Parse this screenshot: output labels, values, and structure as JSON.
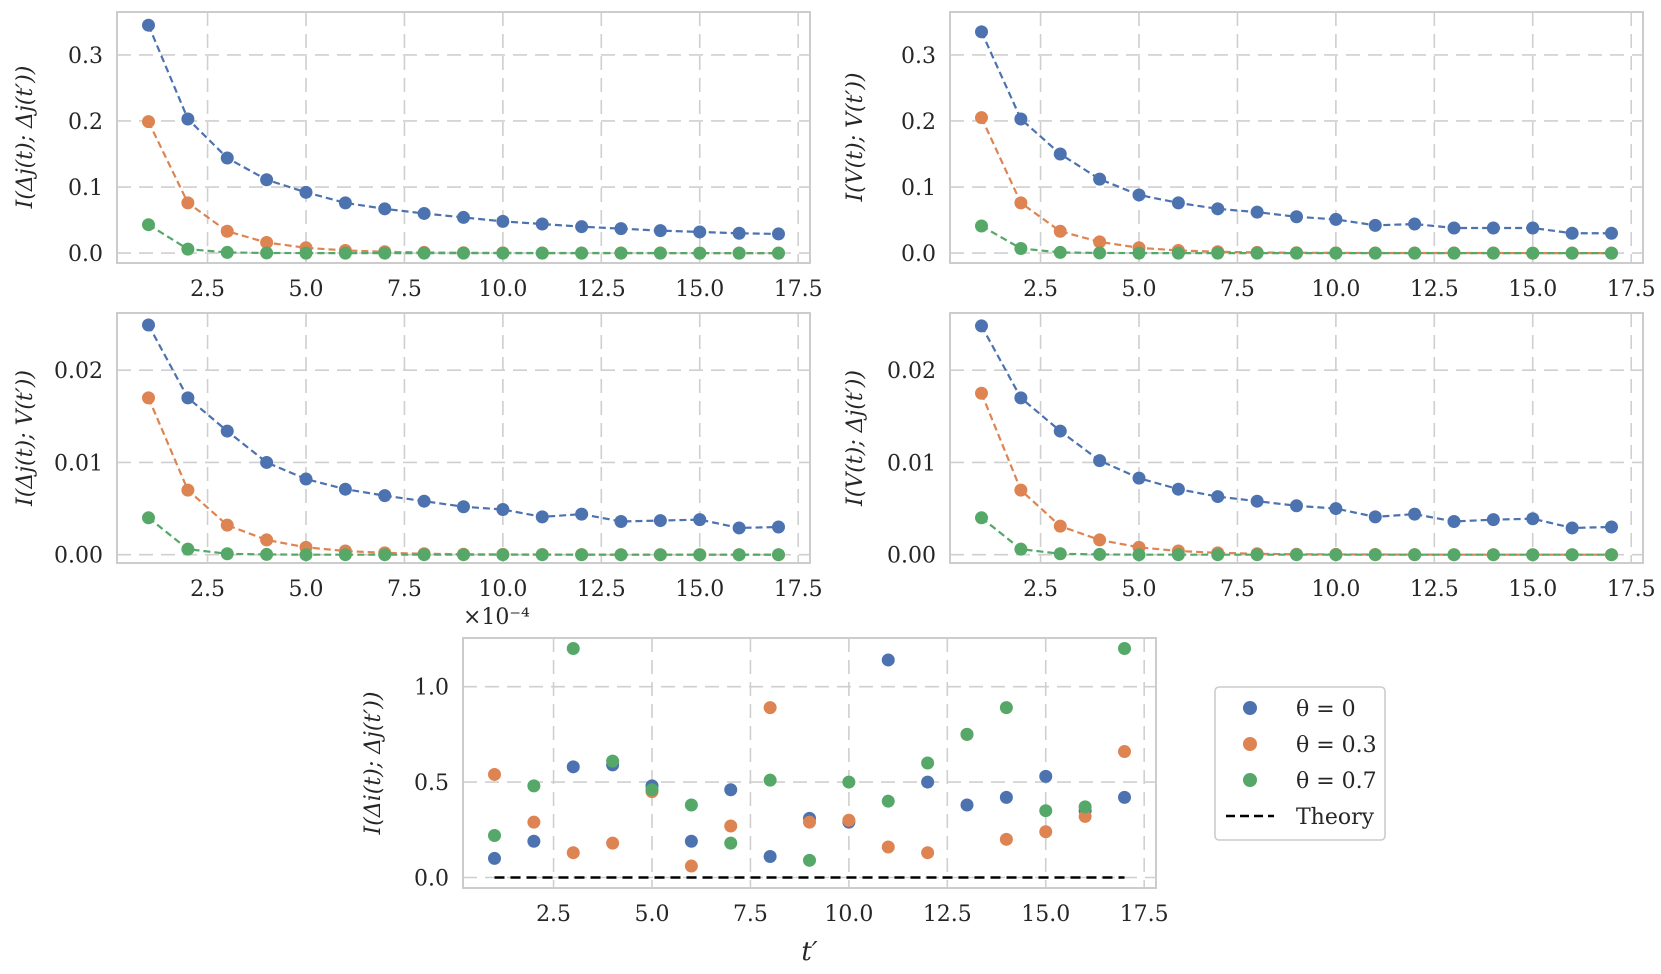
{
  "colors": {
    "theta0": "#4c72b0",
    "theta03": "#dd8452",
    "theta07": "#55a868",
    "theory": "#000000"
  },
  "legend": {
    "entries": [
      {
        "label": "θ = 0",
        "color": "#4c72b0",
        "kind": "marker"
      },
      {
        "label": "θ = 0.3",
        "color": "#dd8452",
        "kind": "marker"
      },
      {
        "label": "θ = 0.7",
        "color": "#55a868",
        "kind": "marker"
      },
      {
        "label": "Theory",
        "color": "#000000",
        "kind": "dashed-line"
      }
    ]
  },
  "chart_data": [
    {
      "type": "line",
      "ylabel": "I(Δj(t); Δj(t′))",
      "xlabel": "",
      "xlim": [
        0.2,
        17.8
      ],
      "ylim": [
        -0.015,
        0.365
      ],
      "xticks": [
        2.5,
        5.0,
        7.5,
        10.0,
        12.5,
        15.0,
        17.5
      ],
      "xtick_labels": [
        "2.5",
        "5.0",
        "7.5",
        "10.0",
        "12.5",
        "15.0",
        "17.5"
      ],
      "yticks": [
        0.0,
        0.1,
        0.2,
        0.3
      ],
      "ytick_labels": [
        "0.0",
        "0.1",
        "0.2",
        "0.3"
      ],
      "x": [
        1,
        2,
        3,
        4,
        5,
        6,
        7,
        8,
        9,
        10,
        11,
        12,
        13,
        14,
        15,
        16,
        17
      ],
      "series": [
        {
          "name": "θ = 0",
          "values": [
            0.345,
            0.203,
            0.144,
            0.111,
            0.092,
            0.076,
            0.067,
            0.06,
            0.054,
            0.048,
            0.044,
            0.04,
            0.037,
            0.034,
            0.032,
            0.03,
            0.029
          ]
        },
        {
          "name": "θ = 0.3",
          "values": [
            0.199,
            0.076,
            0.033,
            0.016,
            0.008,
            0.004,
            0.002,
            0.001,
            0.0005,
            0.0003,
            0.0002,
            0.0001,
            0.0001,
            0.0001,
            0.0,
            0.0,
            0.0
          ]
        },
        {
          "name": "θ = 0.7",
          "values": [
            0.043,
            0.006,
            0.001,
            0.0002,
            0.0,
            0.0,
            0.0,
            0.0,
            0.0,
            0.0,
            0.0,
            0.0,
            0.0,
            0.0,
            0.0,
            0.0,
            0.0
          ]
        }
      ]
    },
    {
      "type": "line",
      "ylabel": "I(V(t); V(t′))",
      "xlabel": "",
      "xlim": [
        0.2,
        17.8
      ],
      "ylim": [
        -0.015,
        0.365
      ],
      "xticks": [
        2.5,
        5.0,
        7.5,
        10.0,
        12.5,
        15.0,
        17.5
      ],
      "xtick_labels": [
        "2.5",
        "5.0",
        "7.5",
        "10.0",
        "12.5",
        "15.0",
        "17.5"
      ],
      "yticks": [
        0.0,
        0.1,
        0.2,
        0.3
      ],
      "ytick_labels": [
        "0.0",
        "0.1",
        "0.2",
        "0.3"
      ],
      "x": [
        1,
        2,
        3,
        4,
        5,
        6,
        7,
        8,
        9,
        10,
        11,
        12,
        13,
        14,
        15,
        16,
        17
      ],
      "series": [
        {
          "name": "θ = 0",
          "values": [
            0.335,
            0.203,
            0.15,
            0.112,
            0.088,
            0.076,
            0.067,
            0.062,
            0.055,
            0.051,
            0.042,
            0.044,
            0.038,
            0.038,
            0.038,
            0.03,
            0.03
          ]
        },
        {
          "name": "θ = 0.3",
          "values": [
            0.205,
            0.076,
            0.033,
            0.017,
            0.008,
            0.004,
            0.002,
            0.001,
            0.0005,
            0.0003,
            0.0002,
            0.0001,
            0.0001,
            0.0001,
            0.0,
            0.0,
            0.0
          ]
        },
        {
          "name": "θ = 0.7",
          "values": [
            0.041,
            0.007,
            0.001,
            0.0002,
            0.0,
            0.0,
            0.0,
            0.0,
            0.0,
            0.0,
            0.0,
            0.0,
            0.0,
            0.0,
            0.0,
            0.0,
            0.0
          ]
        }
      ]
    },
    {
      "type": "line",
      "ylabel": "I(Δj(t); V(t′))",
      "xlabel": "",
      "xlim": [
        0.2,
        17.8
      ],
      "ylim": [
        -0.0009,
        0.0262
      ],
      "xticks": [
        2.5,
        5.0,
        7.5,
        10.0,
        12.5,
        15.0,
        17.5
      ],
      "xtick_labels": [
        "2.5",
        "5.0",
        "7.5",
        "10.0",
        "12.5",
        "15.0",
        "17.5"
      ],
      "yticks": [
        0.0,
        0.01,
        0.02
      ],
      "ytick_labels": [
        "0.00",
        "0.01",
        "0.02"
      ],
      "x": [
        1,
        2,
        3,
        4,
        5,
        6,
        7,
        8,
        9,
        10,
        11,
        12,
        13,
        14,
        15,
        16,
        17
      ],
      "series": [
        {
          "name": "θ = 0",
          "values": [
            0.0249,
            0.017,
            0.0134,
            0.01,
            0.0082,
            0.0071,
            0.0064,
            0.0058,
            0.0052,
            0.0049,
            0.0041,
            0.0044,
            0.0036,
            0.0037,
            0.0038,
            0.0029,
            0.003
          ]
        },
        {
          "name": "θ = 0.3",
          "values": [
            0.017,
            0.007,
            0.0032,
            0.0016,
            0.0008,
            0.0004,
            0.0002,
            0.0001,
            5e-05,
            3e-05,
            2e-05,
            1e-05,
            0.0,
            0.0,
            0.0,
            0.0,
            0.0
          ]
        },
        {
          "name": "θ = 0.7",
          "values": [
            0.004,
            0.0006,
            0.0001,
            3e-05,
            0.0,
            0.0,
            0.0,
            0.0,
            0.0,
            0.0,
            0.0,
            0.0,
            0.0,
            0.0,
            0.0,
            0.0,
            0.0
          ]
        }
      ]
    },
    {
      "type": "line",
      "ylabel": "I(V(t); Δj(t′))",
      "xlabel": "",
      "xlim": [
        0.2,
        17.8
      ],
      "ylim": [
        -0.0009,
        0.0262
      ],
      "xticks": [
        2.5,
        5.0,
        7.5,
        10.0,
        12.5,
        15.0,
        17.5
      ],
      "xtick_labels": [
        "2.5",
        "5.0",
        "7.5",
        "10.0",
        "12.5",
        "15.0",
        "17.5"
      ],
      "yticks": [
        0.0,
        0.01,
        0.02
      ],
      "ytick_labels": [
        "0.00",
        "0.01",
        "0.02"
      ],
      "x": [
        1,
        2,
        3,
        4,
        5,
        6,
        7,
        8,
        9,
        10,
        11,
        12,
        13,
        14,
        15,
        16,
        17
      ],
      "series": [
        {
          "name": "θ = 0",
          "values": [
            0.0248,
            0.017,
            0.0134,
            0.0102,
            0.0083,
            0.0071,
            0.0063,
            0.0058,
            0.0053,
            0.005,
            0.0041,
            0.0044,
            0.0036,
            0.0038,
            0.0039,
            0.0029,
            0.003
          ]
        },
        {
          "name": "θ = 0.3",
          "values": [
            0.0175,
            0.007,
            0.0031,
            0.0016,
            0.0008,
            0.0004,
            0.0002,
            0.0001,
            5e-05,
            3e-05,
            2e-05,
            1e-05,
            0.0,
            0.0,
            0.0,
            0.0,
            0.0
          ]
        },
        {
          "name": "θ = 0.7",
          "values": [
            0.004,
            0.0006,
            0.0001,
            3e-05,
            0.0,
            0.0,
            0.0,
            0.0,
            0.0,
            0.0,
            0.0,
            0.0,
            0.0,
            0.0,
            0.0,
            0.0,
            0.0
          ]
        }
      ]
    },
    {
      "type": "scatter",
      "ylabel": "I(Δi(t); Δj(t′))",
      "xlabel": "t′",
      "offset_text": "×10⁻⁴",
      "xlim": [
        0.2,
        17.8
      ],
      "ylim": [
        -0.055,
        1.255
      ],
      "xticks": [
        2.5,
        5.0,
        7.5,
        10.0,
        12.5,
        15.0,
        17.5
      ],
      "xtick_labels": [
        "2.5",
        "5.0",
        "7.5",
        "10.0",
        "12.5",
        "15.0",
        "17.5"
      ],
      "yticks": [
        0.0,
        0.5,
        1.0
      ],
      "ytick_labels": [
        "0.0",
        "0.5",
        "1.0"
      ],
      "x": [
        1,
        2,
        3,
        4,
        5,
        6,
        7,
        8,
        9,
        10,
        11,
        12,
        13,
        14,
        15,
        16,
        17
      ],
      "series": [
        {
          "name": "θ = 0",
          "values": [
            0.1,
            0.19,
            0.58,
            0.59,
            0.48,
            0.19,
            0.46,
            0.11,
            0.31,
            0.29,
            1.14,
            0.5,
            0.38,
            0.42,
            0.53,
            0.35,
            0.42
          ]
        },
        {
          "name": "θ = 0.3",
          "values": [
            0.54,
            0.29,
            0.13,
            0.18,
            0.45,
            0.06,
            0.27,
            0.89,
            0.29,
            0.3,
            0.16,
            0.13,
            0.75,
            0.2,
            0.24,
            0.32,
            0.66
          ]
        },
        {
          "name": "θ = 0.7",
          "values": [
            0.22,
            0.48,
            1.2,
            0.61,
            0.46,
            0.38,
            0.18,
            0.51,
            0.09,
            0.5,
            0.4,
            0.6,
            0.75,
            0.89,
            0.35,
            0.37,
            1.2
          ]
        },
        {
          "name": "Theory",
          "values": [
            0,
            0,
            0,
            0,
            0,
            0,
            0,
            0,
            0,
            0,
            0,
            0,
            0,
            0,
            0,
            0,
            0
          ]
        }
      ]
    }
  ]
}
